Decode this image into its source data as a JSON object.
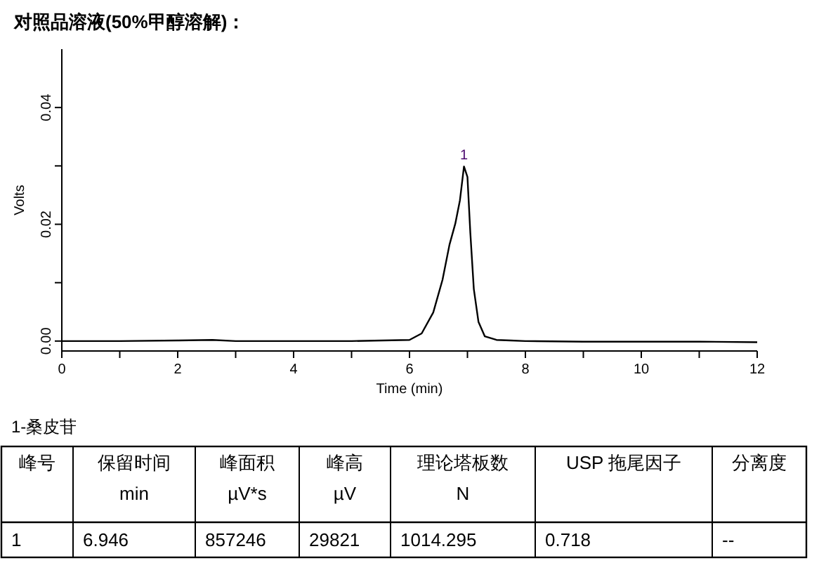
{
  "chart_data": {
    "type": "line",
    "title": "对照品溶液(50%甲醇溶解)：",
    "xlabel": "Time (min)",
    "ylabel": "Volts",
    "x": [
      0,
      1,
      2,
      2.6,
      3,
      4,
      5,
      6.0,
      6.21,
      6.41,
      6.57,
      6.69,
      6.79,
      6.87,
      6.94,
      7.0,
      7.05,
      7.11,
      7.19,
      7.3,
      7.5,
      7.74,
      8,
      9,
      10,
      11,
      12
    ],
    "series": [
      {
        "color": "#000000",
        "values": [
          0,
          0,
          0.0001,
          0.0002,
          0,
          0,
          0,
          0.0002,
          0.0013,
          0.0049,
          0.0105,
          0.0165,
          0.0201,
          0.0241,
          0.0299,
          0.0281,
          0.0185,
          0.0089,
          0.0033,
          0.0008,
          0.0002,
          0.0001,
          0,
          -0.0001,
          -0.0001,
          -0.0001,
          -0.0002
        ]
      }
    ],
    "xlim": [
      0,
      12
    ],
    "ylim": [
      -0.0017,
      0.05
    ],
    "xticks": [
      0,
      {
        "value": 1,
        "label": null
      },
      2,
      {
        "value": 3,
        "label": null
      },
      4,
      {
        "value": 5,
        "label": null
      },
      6,
      {
        "value": 7,
        "label": null
      },
      8,
      {
        "value": 9,
        "label": null
      },
      10,
      {
        "value": 11,
        "label": null
      },
      12
    ],
    "yticks": [
      {
        "value": 0,
        "label": "0.00"
      },
      {
        "value": 0.01,
        "label": null
      },
      {
        "value": 0.02,
        "label": "0.02"
      },
      {
        "value": 0.03,
        "label": null
      },
      {
        "value": 0.04,
        "label": "0.04"
      }
    ],
    "annotations": [
      {
        "text": "1",
        "x": 6.94,
        "y": 0.0299
      },
      "1-桑皮苷",
      "峰号",
      "保留时间",
      "峰面积",
      "峰高",
      "理论塔板数",
      "USP 拖尾因子",
      "分离度",
      "min",
      "µV*s",
      "µV",
      "N",
      "1",
      "6.946",
      "857246",
      "29821",
      "1014.295",
      "0.718",
      "--"
    ]
  }
}
